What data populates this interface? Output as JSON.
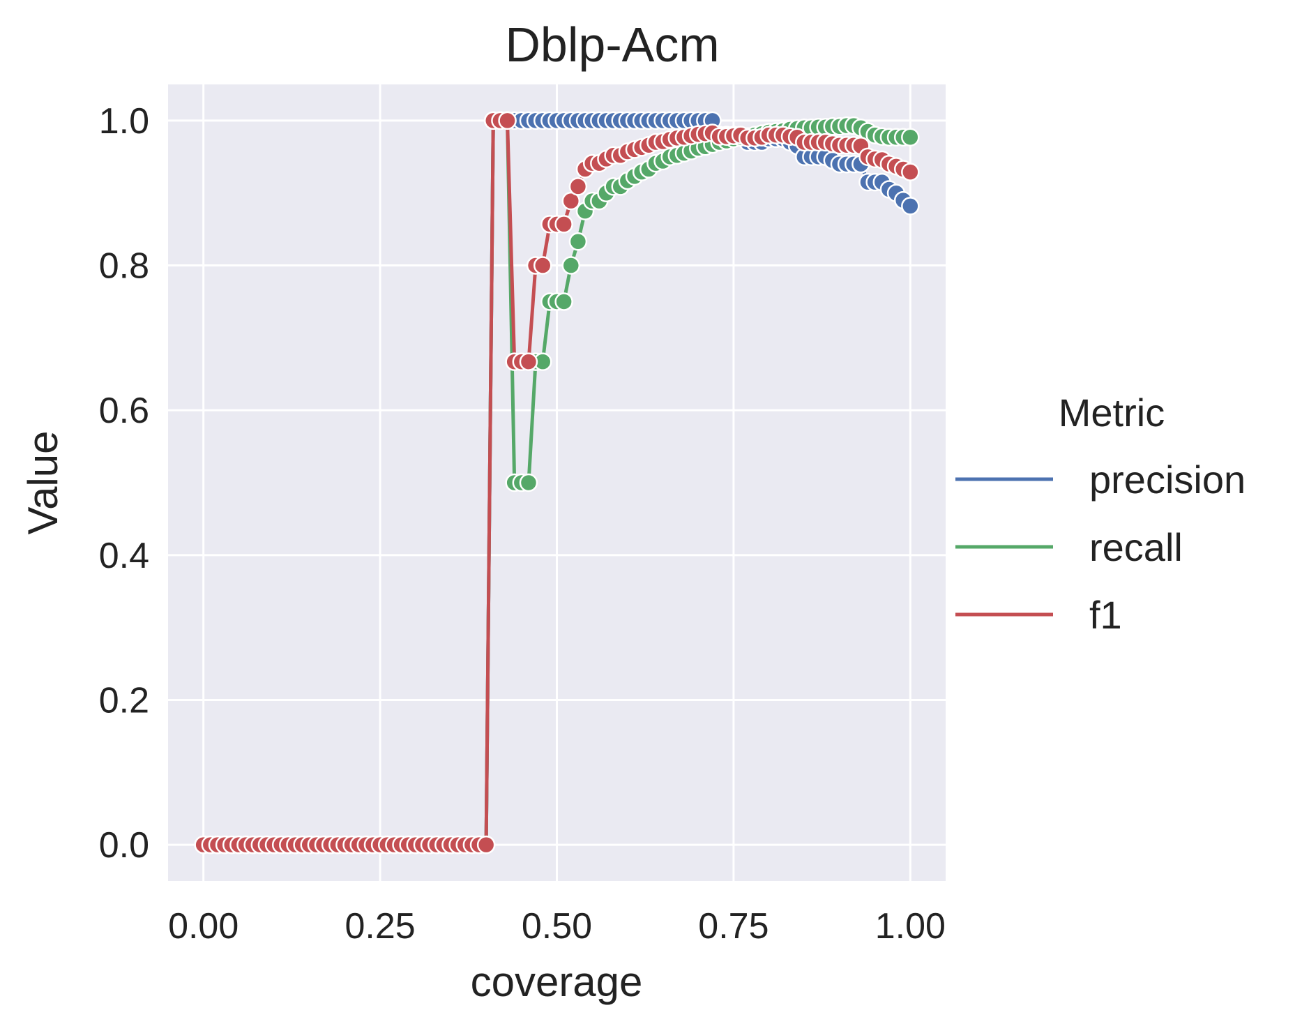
{
  "chart_data": {
    "type": "line",
    "title": "Dblp-Acm",
    "xlabel": "coverage",
    "ylabel": "Value",
    "xlim": [
      -0.05,
      1.05
    ],
    "ylim": [
      -0.05,
      1.05
    ],
    "xticks": [
      0.0,
      0.25,
      0.5,
      0.75,
      1.0
    ],
    "xtick_labels": [
      "0.00",
      "0.25",
      "0.50",
      "0.75",
      "1.00"
    ],
    "yticks": [
      0.0,
      0.2,
      0.4,
      0.6,
      0.8,
      1.0
    ],
    "ytick_labels": [
      "0.0",
      "0.2",
      "0.4",
      "0.6",
      "0.8",
      "1.0"
    ],
    "grid": true,
    "legend": {
      "title": "Metric",
      "placement": "right"
    },
    "series": [
      {
        "name": "precision",
        "color": "#4c72b0",
        "x": [
          0.0,
          0.01,
          0.02,
          0.03,
          0.04,
          0.05,
          0.06,
          0.07,
          0.08,
          0.09,
          0.1,
          0.11,
          0.12,
          0.13,
          0.14,
          0.15,
          0.16,
          0.17,
          0.18,
          0.19,
          0.2,
          0.21,
          0.22,
          0.23,
          0.24,
          0.25,
          0.26,
          0.27,
          0.28,
          0.29,
          0.3,
          0.31,
          0.32,
          0.33,
          0.34,
          0.35,
          0.36,
          0.37,
          0.38,
          0.39,
          0.4,
          0.41,
          0.42,
          0.43,
          0.44,
          0.45,
          0.46,
          0.47,
          0.48,
          0.49,
          0.5,
          0.51,
          0.52,
          0.53,
          0.54,
          0.55,
          0.56,
          0.57,
          0.58,
          0.59,
          0.6,
          0.61,
          0.62,
          0.63,
          0.64,
          0.65,
          0.66,
          0.67,
          0.68,
          0.69,
          0.7,
          0.71,
          0.72,
          0.73,
          0.74,
          0.75,
          0.76,
          0.77,
          0.78,
          0.79,
          0.8,
          0.81,
          0.82,
          0.83,
          0.84,
          0.85,
          0.86,
          0.87,
          0.88,
          0.89,
          0.9,
          0.91,
          0.92,
          0.93,
          0.94,
          0.95,
          0.96,
          0.97,
          0.98,
          0.99,
          1.0
        ],
        "y": [
          0,
          0,
          0,
          0,
          0,
          0,
          0,
          0,
          0,
          0,
          0,
          0,
          0,
          0,
          0,
          0,
          0,
          0,
          0,
          0,
          0,
          0,
          0,
          0,
          0,
          0,
          0,
          0,
          0,
          0,
          0,
          0,
          0,
          0,
          0,
          0,
          0,
          0,
          0,
          0,
          0,
          1.0,
          1.0,
          1.0,
          1.0,
          1.0,
          1.0,
          1.0,
          1.0,
          1.0,
          1.0,
          1.0,
          1.0,
          1.0,
          1.0,
          1.0,
          1.0,
          1.0,
          1.0,
          1.0,
          1.0,
          1.0,
          1.0,
          1.0,
          1.0,
          1.0,
          1.0,
          1.0,
          1.0,
          1.0,
          1.0,
          1.0,
          1.0,
          0.98,
          0.98,
          0.98,
          0.98,
          0.97,
          0.97,
          0.97,
          0.975,
          0.975,
          0.975,
          0.97,
          0.965,
          0.95,
          0.95,
          0.95,
          0.95,
          0.945,
          0.94,
          0.94,
          0.94,
          0.94,
          0.915,
          0.915,
          0.915,
          0.905,
          0.9,
          0.89,
          0.882
        ]
      },
      {
        "name": "recall",
        "color": "#55a868",
        "x": [
          0.0,
          0.01,
          0.02,
          0.03,
          0.04,
          0.05,
          0.06,
          0.07,
          0.08,
          0.09,
          0.1,
          0.11,
          0.12,
          0.13,
          0.14,
          0.15,
          0.16,
          0.17,
          0.18,
          0.19,
          0.2,
          0.21,
          0.22,
          0.23,
          0.24,
          0.25,
          0.26,
          0.27,
          0.28,
          0.29,
          0.3,
          0.31,
          0.32,
          0.33,
          0.34,
          0.35,
          0.36,
          0.37,
          0.38,
          0.39,
          0.4,
          0.41,
          0.42,
          0.43,
          0.44,
          0.45,
          0.46,
          0.47,
          0.48,
          0.49,
          0.5,
          0.51,
          0.52,
          0.53,
          0.54,
          0.55,
          0.56,
          0.57,
          0.58,
          0.59,
          0.6,
          0.61,
          0.62,
          0.63,
          0.64,
          0.65,
          0.66,
          0.67,
          0.68,
          0.69,
          0.7,
          0.71,
          0.72,
          0.73,
          0.74,
          0.75,
          0.76,
          0.77,
          0.78,
          0.79,
          0.8,
          0.81,
          0.82,
          0.83,
          0.84,
          0.85,
          0.86,
          0.87,
          0.88,
          0.89,
          0.9,
          0.91,
          0.92,
          0.93,
          0.94,
          0.95,
          0.96,
          0.97,
          0.98,
          0.99,
          1.0
        ],
        "y": [
          0,
          0,
          0,
          0,
          0,
          0,
          0,
          0,
          0,
          0,
          0,
          0,
          0,
          0,
          0,
          0,
          0,
          0,
          0,
          0,
          0,
          0,
          0,
          0,
          0,
          0,
          0,
          0,
          0,
          0,
          0,
          0,
          0,
          0,
          0,
          0,
          0,
          0,
          0,
          0,
          0,
          1.0,
          1.0,
          1.0,
          0.5,
          0.5,
          0.5,
          0.667,
          0.667,
          0.75,
          0.75,
          0.75,
          0.8,
          0.833,
          0.875,
          0.889,
          0.889,
          0.9,
          0.909,
          0.909,
          0.917,
          0.923,
          0.929,
          0.933,
          0.941,
          0.944,
          0.95,
          0.952,
          0.955,
          0.958,
          0.962,
          0.964,
          0.967,
          0.97,
          0.972,
          0.975,
          0.977,
          0.978,
          0.98,
          0.982,
          0.984,
          0.985,
          0.986,
          0.988,
          0.989,
          0.99,
          0.99,
          0.991,
          0.991,
          0.992,
          0.992,
          0.993,
          0.993,
          0.99,
          0.985,
          0.98,
          0.978,
          0.977,
          0.977,
          0.977,
          0.977
        ]
      },
      {
        "name": "f1",
        "color": "#c44e52",
        "x": [
          0.0,
          0.01,
          0.02,
          0.03,
          0.04,
          0.05,
          0.06,
          0.07,
          0.08,
          0.09,
          0.1,
          0.11,
          0.12,
          0.13,
          0.14,
          0.15,
          0.16,
          0.17,
          0.18,
          0.19,
          0.2,
          0.21,
          0.22,
          0.23,
          0.24,
          0.25,
          0.26,
          0.27,
          0.28,
          0.29,
          0.3,
          0.31,
          0.32,
          0.33,
          0.34,
          0.35,
          0.36,
          0.37,
          0.38,
          0.39,
          0.4,
          0.41,
          0.42,
          0.43,
          0.44,
          0.45,
          0.46,
          0.47,
          0.48,
          0.49,
          0.5,
          0.51,
          0.52,
          0.53,
          0.54,
          0.55,
          0.56,
          0.57,
          0.58,
          0.59,
          0.6,
          0.61,
          0.62,
          0.63,
          0.64,
          0.65,
          0.66,
          0.67,
          0.68,
          0.69,
          0.7,
          0.71,
          0.72,
          0.73,
          0.74,
          0.75,
          0.76,
          0.77,
          0.78,
          0.79,
          0.8,
          0.81,
          0.82,
          0.83,
          0.84,
          0.85,
          0.86,
          0.87,
          0.88,
          0.89,
          0.9,
          0.91,
          0.92,
          0.93,
          0.94,
          0.95,
          0.96,
          0.97,
          0.98,
          0.99,
          1.0
        ],
        "y": [
          0,
          0,
          0,
          0,
          0,
          0,
          0,
          0,
          0,
          0,
          0,
          0,
          0,
          0,
          0,
          0,
          0,
          0,
          0,
          0,
          0,
          0,
          0,
          0,
          0,
          0,
          0,
          0,
          0,
          0,
          0,
          0,
          0,
          0,
          0,
          0,
          0,
          0,
          0,
          0,
          0,
          1.0,
          1.0,
          1.0,
          0.667,
          0.667,
          0.667,
          0.8,
          0.8,
          0.857,
          0.857,
          0.857,
          0.889,
          0.909,
          0.933,
          0.941,
          0.941,
          0.947,
          0.952,
          0.952,
          0.957,
          0.96,
          0.963,
          0.966,
          0.97,
          0.971,
          0.974,
          0.976,
          0.977,
          0.979,
          0.981,
          0.982,
          0.983,
          0.978,
          0.978,
          0.979,
          0.98,
          0.976,
          0.976,
          0.977,
          0.98,
          0.98,
          0.98,
          0.978,
          0.977,
          0.97,
          0.97,
          0.97,
          0.97,
          0.968,
          0.966,
          0.966,
          0.966,
          0.965,
          0.95,
          0.947,
          0.946,
          0.94,
          0.937,
          0.933,
          0.929
        ]
      }
    ]
  }
}
